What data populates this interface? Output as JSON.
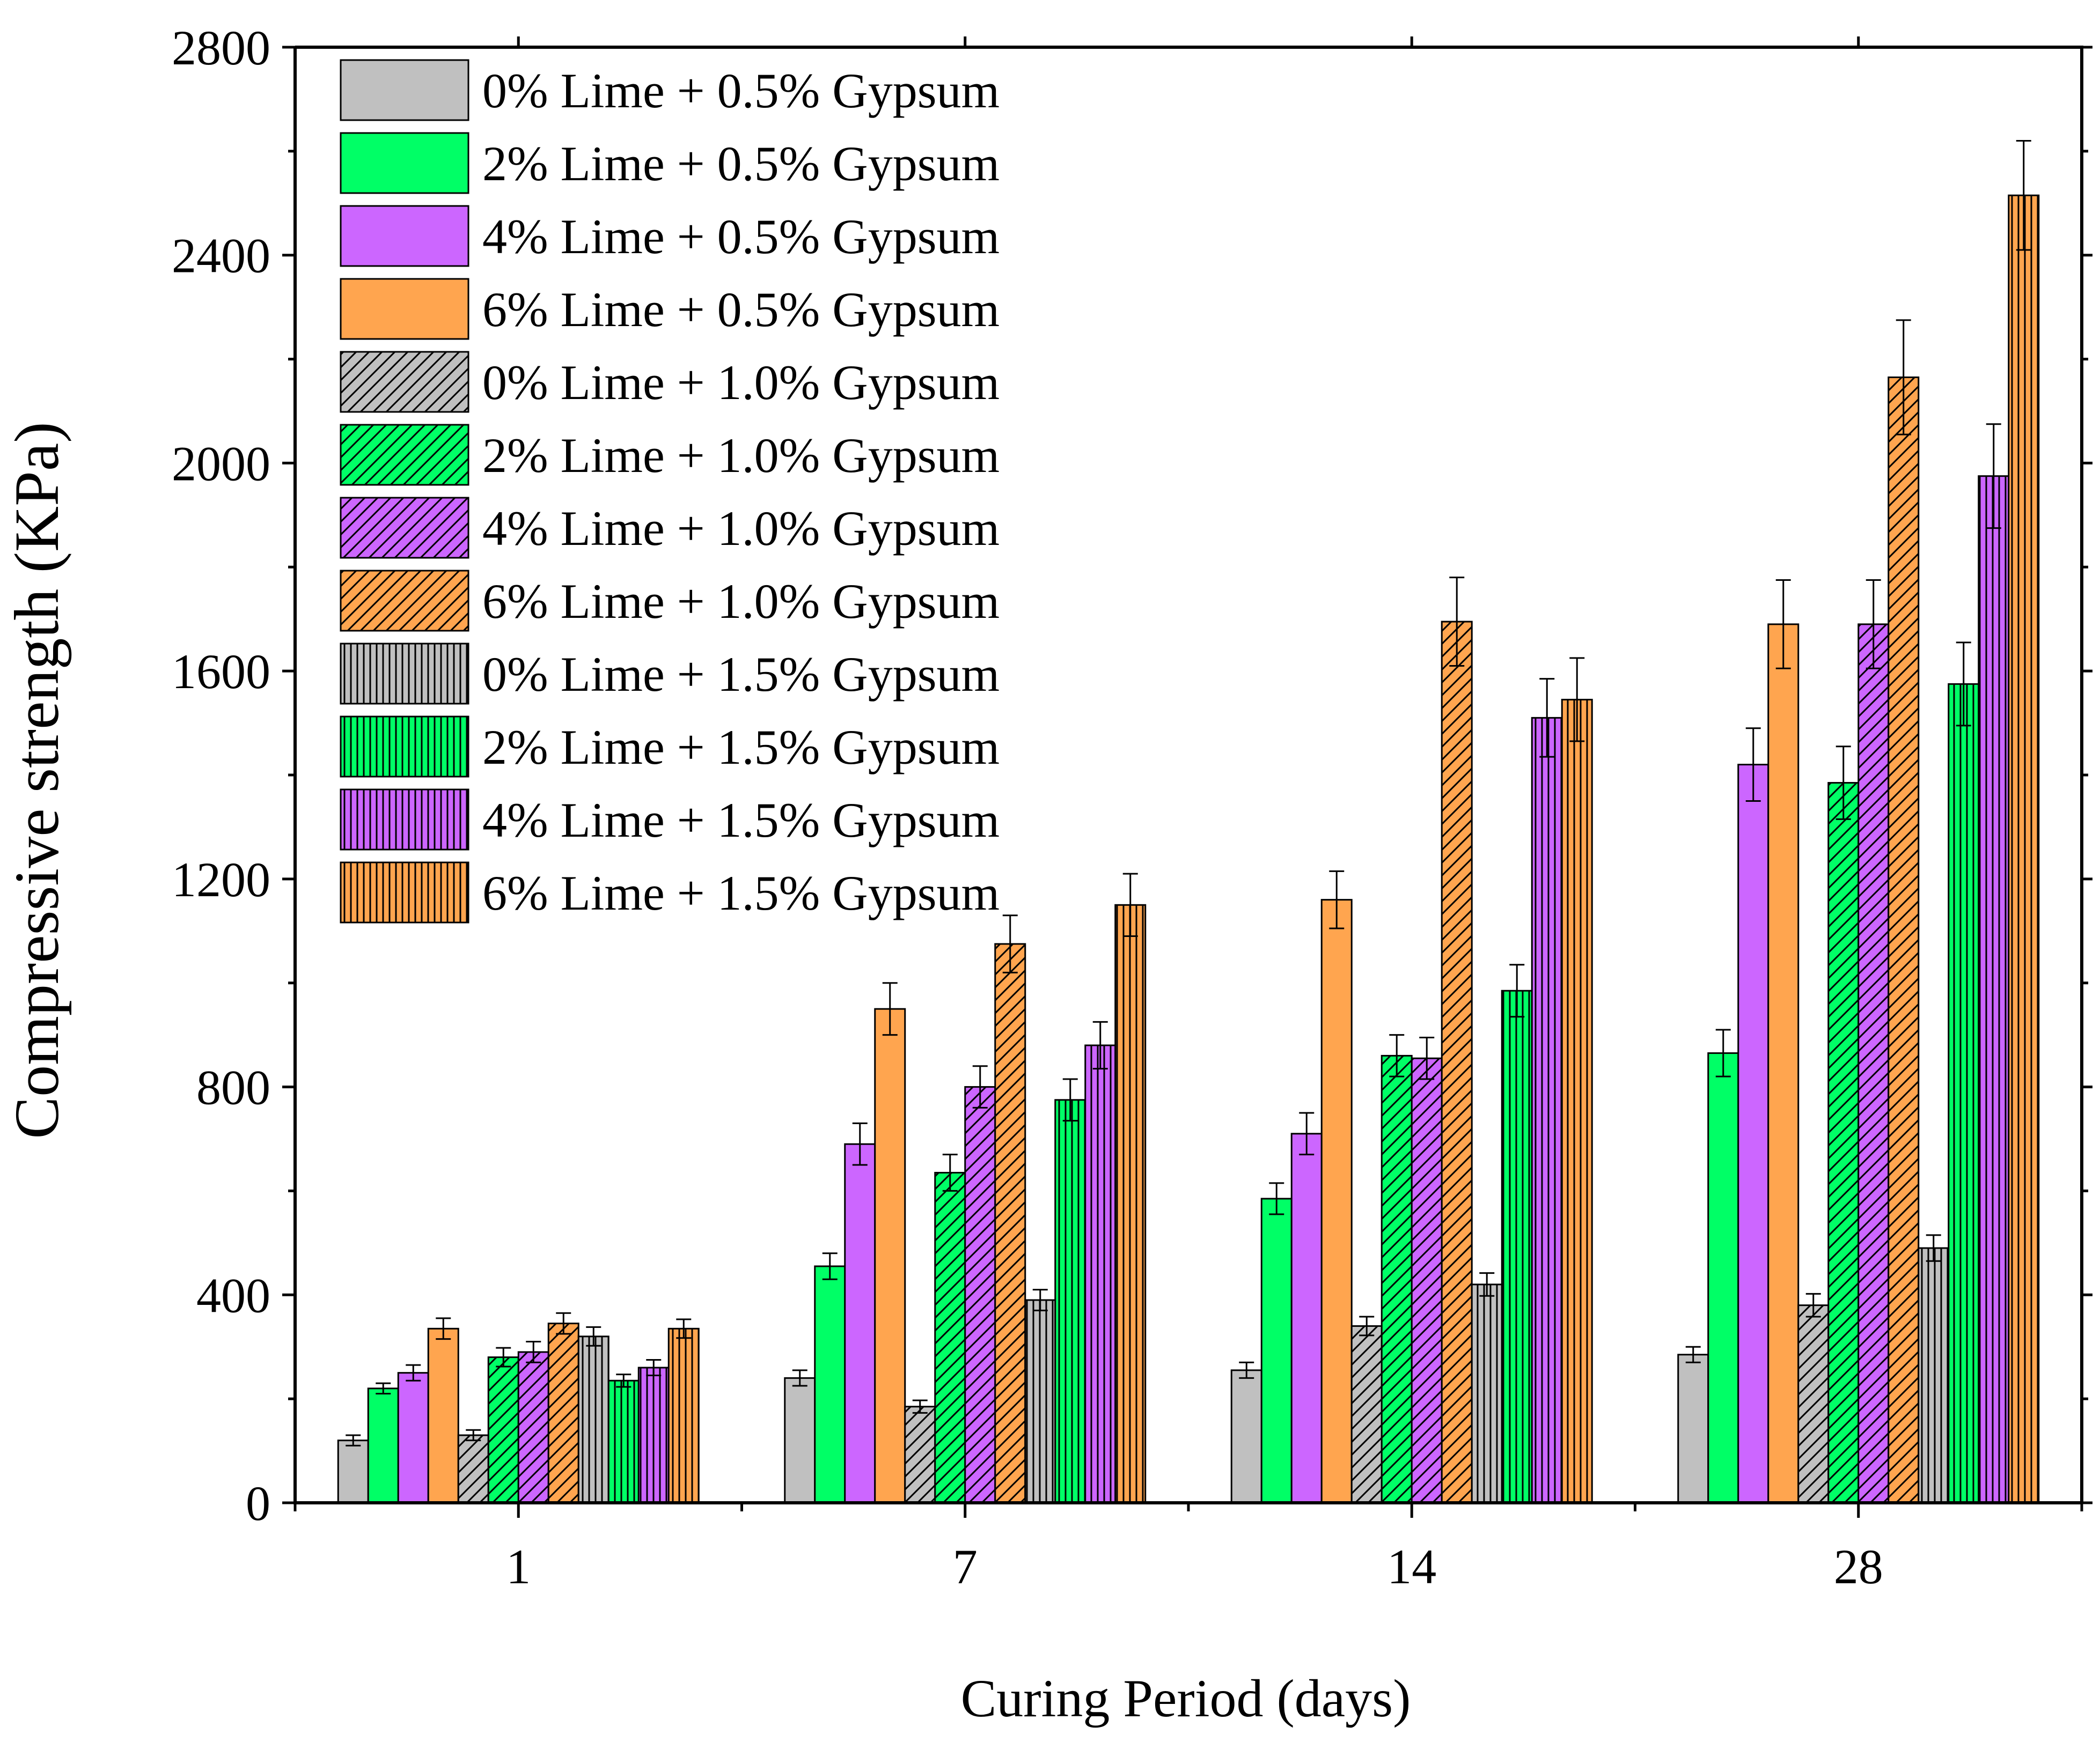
{
  "chart_data": {
    "type": "bar",
    "title": "",
    "xlabel": "Curing Period (days)",
    "ylabel": "Compressive strength (KPa)",
    "ylim": [
      0,
      2800
    ],
    "yticks": [
      0,
      400,
      800,
      1200,
      1600,
      2000,
      2400,
      2800
    ],
    "categories": [
      "1",
      "7",
      "14",
      "28"
    ],
    "legend_position": "top-left",
    "series": [
      {
        "name": "0% Lime + 0.5% Gypsum",
        "color": "#c0c0c0",
        "pattern": "solid",
        "values": [
          120,
          240,
          255,
          285
        ],
        "errors": [
          10,
          15,
          15,
          15
        ]
      },
      {
        "name": "2% Lime + 0.5% Gypsum",
        "color": "#00ff66",
        "pattern": "solid",
        "values": [
          220,
          455,
          585,
          865
        ],
        "errors": [
          10,
          25,
          30,
          45
        ]
      },
      {
        "name": "4% Lime + 0.5% Gypsum",
        "color": "#cc66ff",
        "pattern": "solid",
        "values": [
          250,
          690,
          710,
          1420
        ],
        "errors": [
          15,
          40,
          40,
          70
        ]
      },
      {
        "name": "6% Lime + 0.5% Gypsum",
        "color": "#ffa54f",
        "pattern": "solid",
        "values": [
          335,
          950,
          1160,
          1690
        ],
        "errors": [
          20,
          50,
          55,
          85
        ]
      },
      {
        "name": "0% Lime + 1.0% Gypsum",
        "color": "#c0c0c0",
        "pattern": "diagonal",
        "values": [
          130,
          185,
          340,
          380
        ],
        "errors": [
          10,
          12,
          18,
          22
        ]
      },
      {
        "name": "2% Lime + 1.0% Gypsum",
        "color": "#00ff66",
        "pattern": "diagonal",
        "values": [
          280,
          635,
          860,
          1385
        ],
        "errors": [
          18,
          35,
          40,
          70
        ]
      },
      {
        "name": "4% Lime + 1.0% Gypsum",
        "color": "#cc66ff",
        "pattern": "diagonal",
        "values": [
          290,
          800,
          855,
          1690
        ],
        "errors": [
          20,
          40,
          40,
          85
        ]
      },
      {
        "name": "6% Lime + 1.0% Gypsum",
        "color": "#ffa54f",
        "pattern": "diagonal",
        "values": [
          345,
          1075,
          1695,
          2165
        ],
        "errors": [
          20,
          55,
          85,
          110
        ]
      },
      {
        "name": "0% Lime + 1.5% Gypsum",
        "color": "#c0c0c0",
        "pattern": "vertical",
        "values": [
          320,
          390,
          420,
          490
        ],
        "errors": [
          18,
          20,
          22,
          25
        ]
      },
      {
        "name": "2% Lime + 1.5% Gypsum",
        "color": "#00ff66",
        "pattern": "vertical",
        "values": [
          235,
          775,
          985,
          1575
        ],
        "errors": [
          12,
          40,
          50,
          80
        ]
      },
      {
        "name": "4% Lime + 1.5% Gypsum",
        "color": "#cc66ff",
        "pattern": "vertical",
        "values": [
          260,
          880,
          1510,
          1975
        ],
        "errors": [
          15,
          45,
          75,
          100
        ]
      },
      {
        "name": "6% Lime + 1.5% Gypsum",
        "color": "#ffa54f",
        "pattern": "vertical",
        "values": [
          335,
          1150,
          1545,
          2515
        ],
        "errors": [
          18,
          60,
          80,
          105
        ]
      }
    ]
  }
}
